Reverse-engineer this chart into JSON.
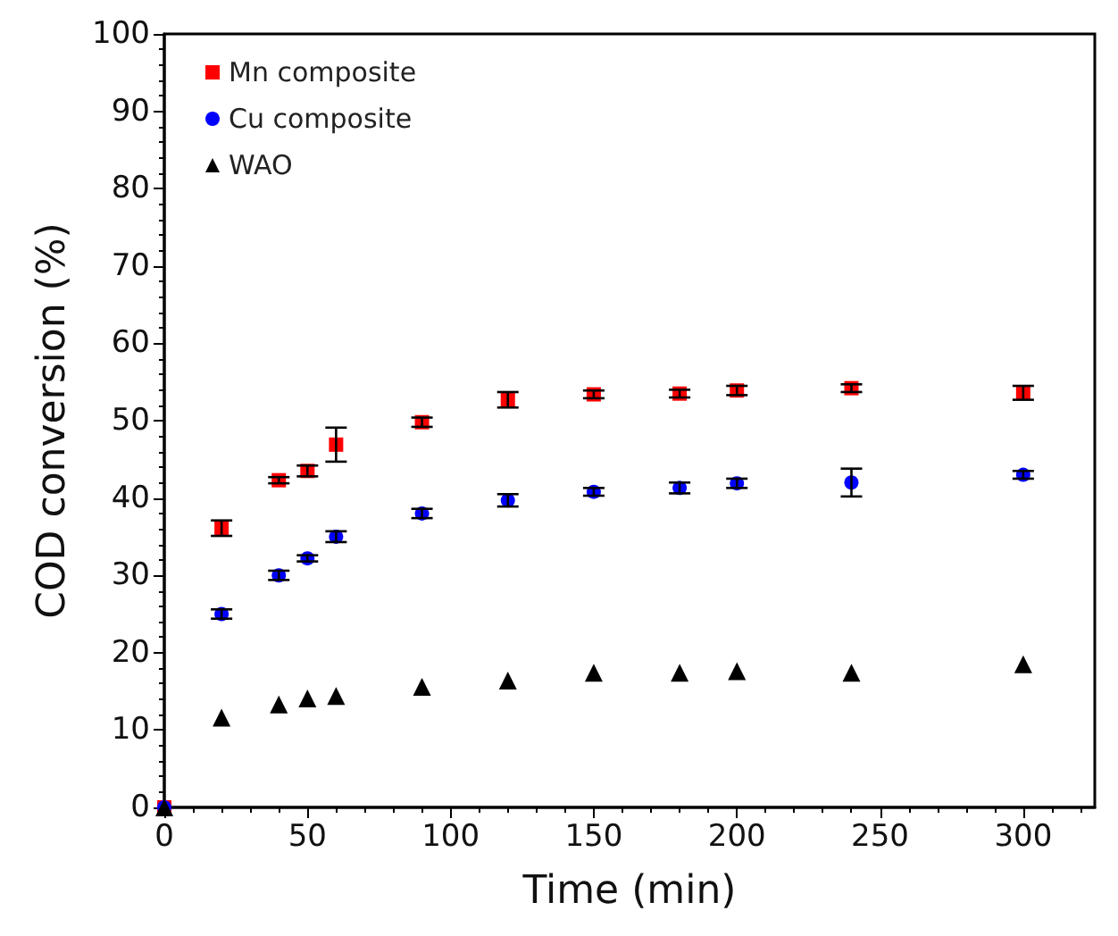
{
  "chart_data": {
    "type": "scatter",
    "xlabel": "Time (min)",
    "ylabel": "COD conversion (%)",
    "x": [
      0,
      20,
      40,
      50,
      60,
      90,
      120,
      150,
      180,
      200,
      240,
      300
    ],
    "series": [
      {
        "name": "Mn composite",
        "color": "#ff0000",
        "marker": "square",
        "values": [
          0,
          36.1,
          42.3,
          43.5,
          46.9,
          49.8,
          52.7,
          53.4,
          53.5,
          53.9,
          54.2,
          53.6
        ],
        "errors": [
          null,
          1.0,
          0.4,
          0.7,
          2.2,
          0.6,
          1.0,
          0.5,
          0.5,
          0.6,
          0.5,
          0.9
        ]
      },
      {
        "name": "Cu composite",
        "color": "#0000ff",
        "marker": "circle",
        "values": [
          0,
          25.0,
          30.0,
          32.2,
          35.0,
          38.0,
          39.7,
          40.8,
          41.3,
          41.9,
          42.0,
          43.0
        ],
        "errors": [
          null,
          0.6,
          0.6,
          0.4,
          0.7,
          0.6,
          0.8,
          0.5,
          0.7,
          0.6,
          1.8,
          0.5
        ]
      },
      {
        "name": "WAO",
        "color": "#000000",
        "marker": "triangle",
        "values": [
          0,
          11.6,
          13.3,
          14.1,
          14.4,
          15.6,
          16.4,
          17.4,
          17.4,
          17.6,
          17.4,
          18.5
        ]
      }
    ],
    "xlim": [
      0,
      325
    ],
    "xticks": [
      0,
      50,
      100,
      150,
      200,
      250,
      300
    ],
    "ylim": [
      0,
      100
    ],
    "yticks": [
      0,
      10,
      20,
      30,
      40,
      50,
      60,
      70,
      80,
      90,
      100
    ],
    "grid": false,
    "legend": "top left"
  }
}
